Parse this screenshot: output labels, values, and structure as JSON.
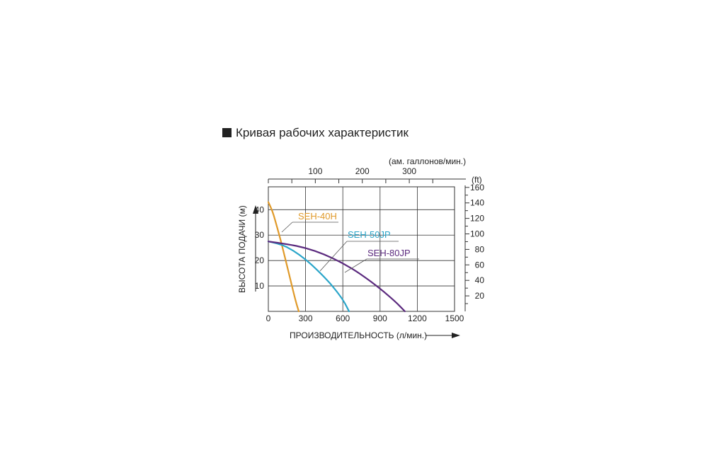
{
  "chart_data": {
    "type": "line",
    "title": "Кривая рабочих характеристик",
    "xlabel": "ПРОИЗВОДИТЕЛЬНОСТЬ (л/мин.)",
    "ylabel": "ВЫСОТА ПОДАЧИ (м)",
    "x2label": "(ам. галлонов/мин.)",
    "y2label": "(ft)",
    "xlim": [
      0,
      1500
    ],
    "ylim": [
      0,
      49
    ],
    "x_ticks": [
      "0",
      "300",
      "600",
      "900",
      "1200",
      "1500"
    ],
    "y_ticks": [
      "10",
      "20",
      "30",
      "40"
    ],
    "x2_ticks": [
      "100",
      "200",
      "300"
    ],
    "y2_ticks": [
      "20",
      "40",
      "60",
      "80",
      "100",
      "120",
      "140",
      "160"
    ],
    "grid": true,
    "series": [
      {
        "name": "SEH-40H",
        "color": "#e09a2a",
        "x": [
          0,
          30,
          60,
          100,
          140,
          180,
          220,
          245
        ],
        "y": [
          43,
          40,
          35,
          28,
          20,
          12,
          4,
          0
        ]
      },
      {
        "name": "SEH-50JP",
        "color": "#2aa5c9",
        "x": [
          0,
          100,
          200,
          300,
          400,
          500,
          580,
          620,
          650
        ],
        "y": [
          27.5,
          26.5,
          24,
          20.5,
          16,
          11,
          6,
          3,
          0
        ]
      },
      {
        "name": "SEH-80JP",
        "color": "#5b2a7e",
        "x": [
          0,
          150,
          300,
          450,
          600,
          750,
          900,
          1020,
          1100
        ],
        "y": [
          27.5,
          26.5,
          25,
          22.5,
          19,
          14.5,
          9,
          4,
          0
        ]
      }
    ]
  }
}
